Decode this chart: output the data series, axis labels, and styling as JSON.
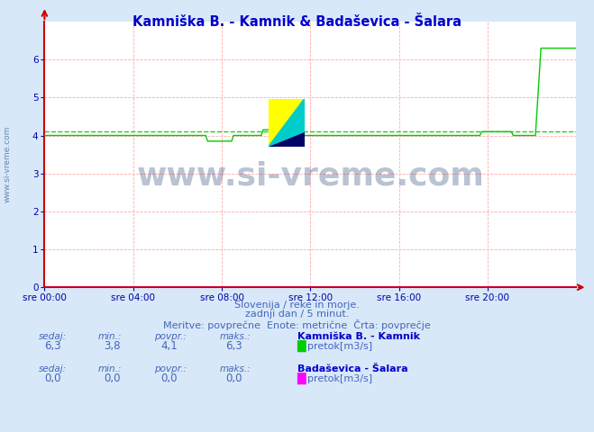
{
  "title": "Kamniška B. - Kamnik & Badaševica - Šalara",
  "title_color": "#0000cc",
  "bg_color": "#d8e8f8",
  "plot_bg_color": "#ffffff",
  "grid_color": "#ffaaaa",
  "xlabel_ticks": [
    "sre 00:00",
    "sre 04:00",
    "sre 08:00",
    "sre 12:00",
    "sre 16:00",
    "sre 20:00"
  ],
  "ylim": [
    0,
    7
  ],
  "line1_color": "#00cc00",
  "line2_color": "#ff00ff",
  "avg_value1": 4.1,
  "watermark": "www.si-vreme.com",
  "watermark_color": "#1a3a6b",
  "subtitle1": "Slovenija / reke in morje.",
  "subtitle2": "zadnji dan / 5 minut.",
  "subtitle3": "Meritve: povprečne  Enote: metrične  Črta: povprečje",
  "subtitle_color": "#4466bb",
  "legend1_station": "Kamniška B. - Kamnik",
  "legend1_label": "pretok[m3/s]",
  "legend1_color": "#00cc00",
  "legend2_station": "Badaševica - Šalara",
  "legend2_label": "pretok[m3/s]",
  "legend2_color": "#ff00ff",
  "stats1": {
    "sedaj": "6,3",
    "min": "3,8",
    "povpr": "4,1",
    "maks": "6,3"
  },
  "stats2": {
    "sedaj": "0,0",
    "min": "0,0",
    "povpr": "0,0",
    "maks": "0,0"
  },
  "axis_color": "#cc0000",
  "tick_color": "#0000aa",
  "left_label_color": "#6688aa",
  "left_label": "www.si-vreme.com"
}
